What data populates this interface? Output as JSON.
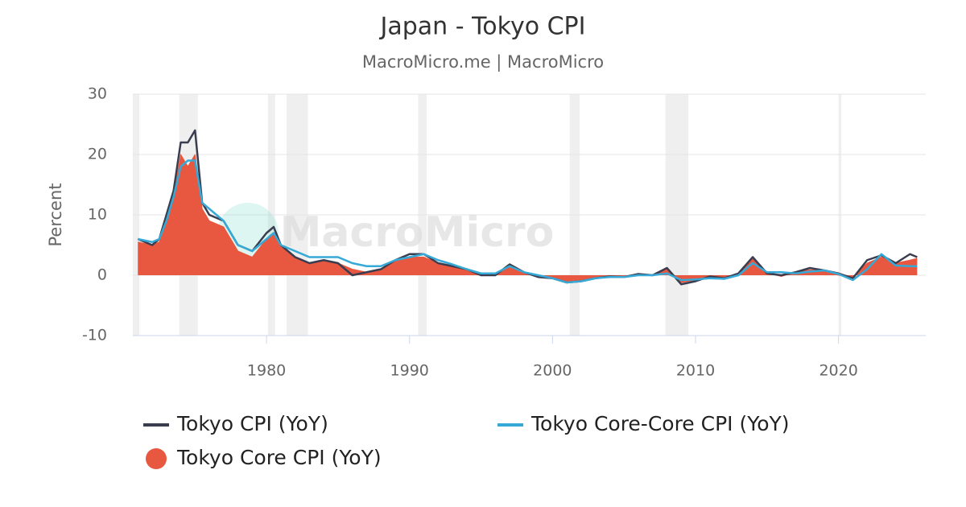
{
  "chart_data": {
    "type": "line",
    "title": "Japan - Tokyo CPI",
    "subtitle": "MacroMicro.me | MacroMicro",
    "watermark": "MacroMicro",
    "y_label": "Percent",
    "xlim": [
      1970.65,
      2026.1
    ],
    "xticks": [
      1980,
      1990,
      2000,
      2010,
      2020
    ],
    "ylim": [
      -10,
      30
    ],
    "yticks": [
      -10,
      0,
      10,
      20,
      30
    ],
    "grid": true,
    "shaded_ranges": [
      [
        1970.65,
        1971.1
      ],
      [
        1973.9,
        1975.2
      ],
      [
        1980.1,
        1980.6
      ],
      [
        1981.4,
        1982.9
      ],
      [
        1990.6,
        1991.2
      ],
      [
        2001.2,
        2001.9
      ],
      [
        2007.9,
        2009.5
      ],
      [
        2020.0,
        2020.2
      ]
    ],
    "shade_color": "#efefef",
    "x": [
      1971,
      1972,
      1972.5,
      1973,
      1973.5,
      1974,
      1974.5,
      1975,
      1975.5,
      1976,
      1977,
      1978,
      1979,
      1980,
      1980.5,
      1981,
      1982,
      1983,
      1984,
      1985,
      1986,
      1987,
      1988,
      1989,
      1990,
      1991,
      1992,
      1993,
      1994,
      1995,
      1996,
      1997,
      1998,
      1999,
      2000,
      2001,
      2002,
      2003,
      2004,
      2005,
      2006,
      2007,
      2008,
      2009,
      2010,
      2011,
      2012,
      2013,
      2014,
      2015,
      2016,
      2017,
      2018,
      2019,
      2020,
      2021,
      2022,
      2023,
      2024,
      2025,
      2025.5
    ],
    "series": [
      {
        "name": "Tokyo CPI (YoY)",
        "type": "line",
        "color": "#3a3d4f",
        "values": [
          6,
          5,
          6,
          10,
          14,
          22,
          22,
          24,
          12,
          10,
          9,
          5,
          4,
          7,
          8,
          5,
          3,
          2,
          2.5,
          2,
          0,
          0.5,
          1,
          2.5,
          3.5,
          3.5,
          2,
          1.5,
          1,
          0,
          0,
          1.8,
          0.5,
          -0.3,
          -0.5,
          -1.2,
          -1,
          -0.5,
          -0.2,
          -0.3,
          0.2,
          0,
          1.2,
          -1.5,
          -1,
          -0.2,
          -0.5,
          0.3,
          3,
          0.3,
          0,
          0.5,
          1.2,
          0.8,
          0.3,
          -0.5,
          2.5,
          3.3,
          2,
          3.5,
          3
        ]
      },
      {
        "name": "Tokyo Core-Core CPI (YoY)",
        "type": "line",
        "color": "#36a9d6",
        "values": [
          6,
          5.5,
          6,
          9,
          13,
          18,
          19,
          19,
          12,
          11,
          9,
          5,
          4,
          6,
          7,
          5,
          4,
          3,
          3,
          3,
          2,
          1.5,
          1.5,
          2.5,
          3,
          3.5,
          2.5,
          1.8,
          1,
          0.3,
          0.3,
          1.5,
          0.5,
          0,
          -0.5,
          -1.2,
          -1,
          -0.5,
          -0.3,
          -0.3,
          0,
          0,
          0.3,
          -0.8,
          -0.7,
          -0.5,
          -0.6,
          0,
          2,
          0.5,
          0.5,
          0.3,
          0.6,
          0.8,
          0.2,
          -0.8,
          1,
          3.5,
          1.6,
          1.5,
          1.5
        ]
      },
      {
        "name": "Tokyo Core CPI (YoY)",
        "type": "area",
        "color": "#e8573f",
        "values": [
          5.5,
          5,
          5.5,
          9,
          13,
          20,
          18,
          20,
          11,
          9,
          8,
          4,
          3,
          6,
          7,
          5,
          3,
          2,
          2.5,
          2,
          1,
          0.5,
          1,
          2.5,
          3,
          3,
          2,
          1.5,
          1,
          0.2,
          0.1,
          1.5,
          0.5,
          -0.1,
          -0.5,
          -1,
          -1,
          -0.3,
          -0.2,
          -0.2,
          0.1,
          0,
          1,
          -1.2,
          -0.8,
          -0.3,
          -0.5,
          0.2,
          2.7,
          0.4,
          -0.2,
          0.5,
          0.9,
          0.8,
          0,
          -0.3,
          2,
          3,
          2,
          2.5,
          2.8
        ]
      }
    ]
  }
}
